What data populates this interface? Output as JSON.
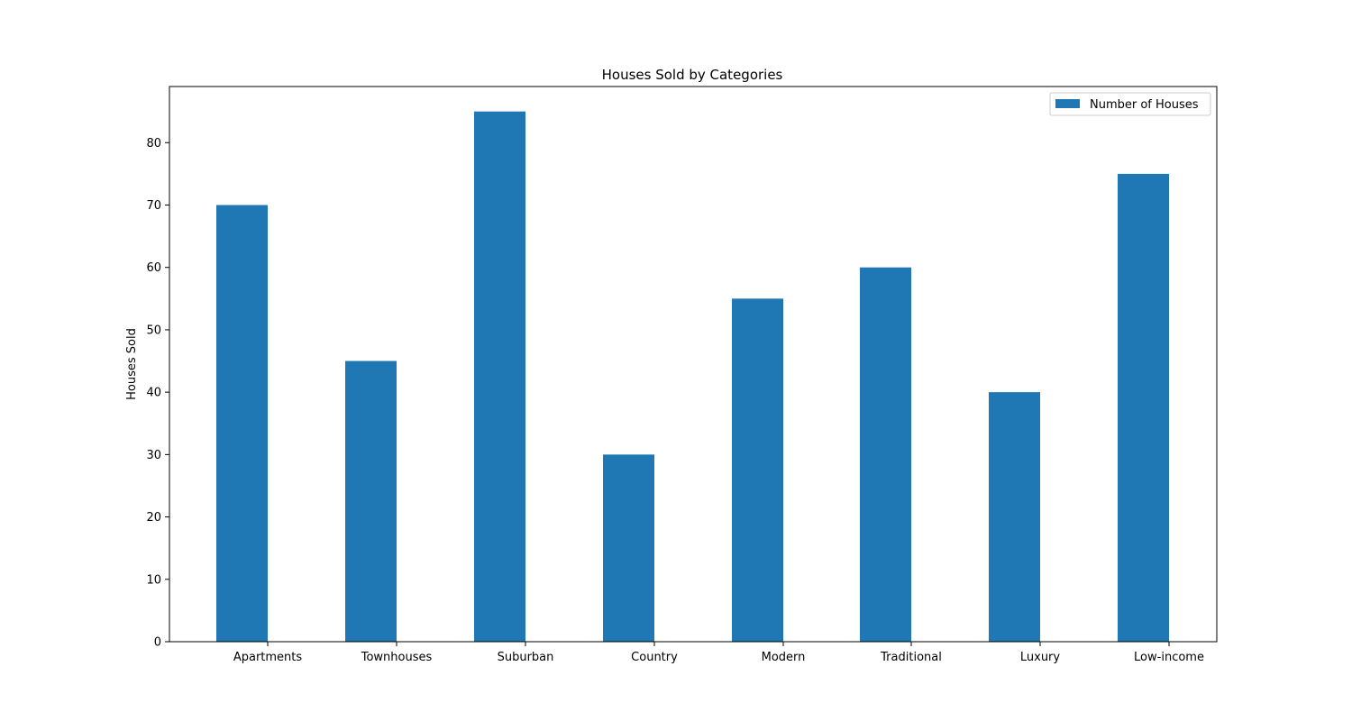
{
  "chart_data": {
    "type": "bar",
    "title": "Houses Sold by Categories",
    "xlabel": "",
    "ylabel": "Houses Sold",
    "categories": [
      "Apartments",
      "Townhouses",
      "Suburban",
      "Country",
      "Modern",
      "Traditional",
      "Luxury",
      "Low-income"
    ],
    "series": [
      {
        "name": "Number of Houses",
        "values": [
          70,
          45,
          85,
          30,
          55,
          60,
          40,
          75
        ]
      }
    ],
    "ylim": [
      0,
      89
    ],
    "yticks": [
      0,
      10,
      20,
      30,
      40,
      50,
      60,
      70,
      80
    ],
    "grid": false,
    "legend_position": "top-right",
    "colors": {
      "bar": "#1f77b4",
      "axes": "#000000",
      "background": "#ffffff"
    }
  }
}
